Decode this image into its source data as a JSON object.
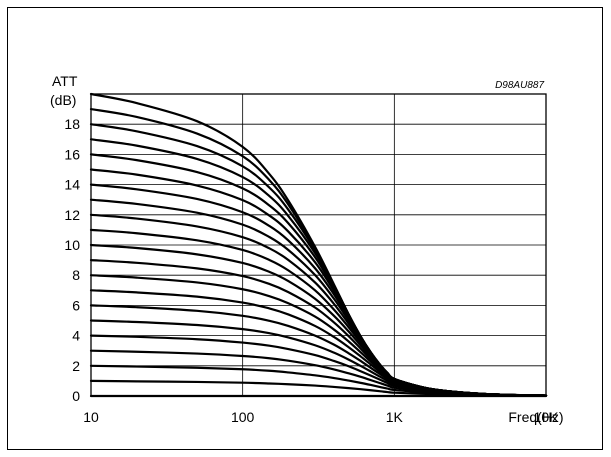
{
  "chart_data": {
    "type": "line",
    "code": "D98AU887",
    "ylabel_line1": "ATT",
    "ylabel_line2": "(dB)",
    "xlabel": "Freq(Hz)",
    "x_scale": "log",
    "xlim": [
      10,
      10000
    ],
    "ylim": [
      0,
      20
    ],
    "grid": true,
    "x_ticks": [
      {
        "value": 10,
        "label": "10"
      },
      {
        "value": 100,
        "label": "100"
      },
      {
        "value": 1000,
        "label": "1K"
      },
      {
        "value": 10000,
        "label": "10K"
      }
    ],
    "y_ticks": [
      {
        "value": 0,
        "label": "0"
      },
      {
        "value": 2,
        "label": "2"
      },
      {
        "value": 4,
        "label": "4"
      },
      {
        "value": 6,
        "label": "6"
      },
      {
        "value": 8,
        "label": "8"
      },
      {
        "value": 10,
        "label": "10"
      },
      {
        "value": 12,
        "label": "12"
      },
      {
        "value": 14,
        "label": "14"
      },
      {
        "value": 16,
        "label": "16"
      },
      {
        "value": 18,
        "label": "18"
      }
    ],
    "line_color": "#000000",
    "x": [
      10,
      20,
      50,
      100,
      150,
      200,
      300,
      400,
      500,
      600,
      700,
      800,
      900,
      1000,
      1500,
      2000,
      3000,
      5000,
      10000
    ],
    "series": [
      {
        "values": [
          0,
          0,
          0,
          0,
          0,
          0,
          0,
          0,
          0,
          0,
          0,
          0,
          0,
          0,
          0,
          0,
          0,
          0,
          0
        ]
      },
      {
        "values": [
          1.0,
          0.97,
          0.93,
          0.88,
          0.83,
          0.78,
          0.69,
          0.6,
          0.52,
          0.45,
          0.38,
          0.32,
          0.26,
          0.22,
          0.15,
          0.11,
          0.07,
          0.04,
          0.02
        ]
      },
      {
        "values": [
          2.0,
          1.95,
          1.87,
          1.77,
          1.67,
          1.56,
          1.37,
          1.19,
          1.02,
          0.87,
          0.73,
          0.6,
          0.49,
          0.4,
          0.25,
          0.18,
          0.11,
          0.06,
          0.03
        ]
      },
      {
        "values": [
          3.0,
          2.93,
          2.81,
          2.65,
          2.5,
          2.34,
          2.04,
          1.76,
          1.5,
          1.27,
          1.05,
          0.86,
          0.69,
          0.55,
          0.33,
          0.23,
          0.14,
          0.07,
          0.03
        ]
      },
      {
        "values": [
          4.0,
          3.92,
          3.76,
          3.54,
          3.33,
          3.11,
          2.71,
          2.32,
          1.97,
          1.64,
          1.35,
          1.09,
          0.86,
          0.68,
          0.4,
          0.27,
          0.16,
          0.08,
          0.03
        ]
      },
      {
        "values": [
          5.0,
          4.9,
          4.7,
          4.43,
          4.16,
          3.88,
          3.36,
          2.87,
          2.41,
          1.99,
          1.62,
          1.29,
          1.01,
          0.79,
          0.45,
          0.3,
          0.17,
          0.08,
          0.03
        ]
      },
      {
        "values": [
          6.0,
          5.88,
          5.64,
          5.31,
          4.98,
          4.64,
          4.0,
          3.4,
          2.83,
          2.32,
          1.86,
          1.47,
          1.14,
          0.88,
          0.49,
          0.32,
          0.18,
          0.09,
          0.03
        ]
      },
      {
        "values": [
          7.0,
          6.86,
          6.58,
          6.19,
          5.8,
          5.4,
          4.64,
          3.91,
          3.23,
          2.62,
          2.08,
          1.62,
          1.24,
          0.95,
          0.52,
          0.34,
          0.19,
          0.09,
          0.03
        ]
      },
      {
        "values": [
          8.0,
          7.84,
          7.52,
          7.07,
          6.61,
          6.14,
          5.26,
          4.4,
          3.61,
          2.89,
          2.27,
          1.75,
          1.33,
          1.01,
          0.55,
          0.35,
          0.2,
          0.09,
          0.03
        ]
      },
      {
        "values": [
          9.0,
          8.82,
          8.45,
          7.94,
          7.42,
          6.88,
          5.86,
          4.87,
          3.96,
          3.14,
          2.43,
          1.85,
          1.39,
          1.05,
          0.57,
          0.36,
          0.2,
          0.09,
          0.03
        ]
      },
      {
        "values": [
          10.0,
          9.8,
          9.38,
          8.81,
          8.22,
          7.61,
          6.44,
          5.31,
          4.27,
          3.35,
          2.57,
          1.94,
          1.45,
          1.08,
          0.58,
          0.37,
          0.2,
          0.09,
          0.03
        ]
      },
      {
        "values": [
          11.0,
          10.78,
          10.31,
          9.67,
          9.01,
          8.32,
          7.0,
          5.72,
          4.55,
          3.53,
          2.68,
          2.0,
          1.48,
          1.1,
          0.59,
          0.37,
          0.21,
          0.09,
          0.03
        ]
      },
      {
        "values": [
          12.0,
          11.75,
          11.23,
          10.52,
          9.78,
          9.01,
          7.52,
          6.1,
          4.79,
          3.67,
          2.76,
          2.04,
          1.5,
          1.11,
          0.59,
          0.37,
          0.21,
          0.09,
          0.03
        ]
      },
      {
        "values": [
          13.0,
          12.72,
          12.14,
          11.35,
          10.53,
          9.67,
          8.01,
          6.44,
          4.99,
          3.78,
          2.81,
          2.07,
          1.52,
          1.12,
          0.6,
          0.38,
          0.21,
          0.09,
          0.03
        ]
      },
      {
        "values": [
          14.0,
          13.69,
          13.05,
          12.17,
          11.26,
          10.3,
          8.46,
          6.73,
          5.15,
          3.85,
          2.84,
          2.08,
          1.52,
          1.12,
          0.6,
          0.38,
          0.21,
          0.09,
          0.03
        ]
      },
      {
        "values": [
          15.0,
          14.66,
          13.94,
          12.97,
          11.95,
          10.89,
          8.86,
          6.96,
          5.26,
          3.89,
          2.86,
          2.09,
          1.53,
          1.13,
          0.6,
          0.38,
          0.21,
          0.09,
          0.03
        ]
      },
      {
        "values": [
          16.0,
          15.62,
          14.83,
          13.75,
          12.62,
          11.44,
          9.2,
          7.13,
          5.33,
          3.92,
          2.87,
          2.1,
          1.53,
          1.13,
          0.6,
          0.38,
          0.21,
          0.09,
          0.03
        ]
      },
      {
        "values": [
          17.0,
          16.58,
          15.7,
          14.5,
          13.24,
          11.92,
          9.47,
          7.25,
          5.37,
          3.93,
          2.87,
          2.1,
          1.53,
          1.13,
          0.6,
          0.38,
          0.21,
          0.09,
          0.03
        ]
      },
      {
        "values": [
          18.0,
          17.53,
          16.55,
          15.21,
          13.8,
          12.34,
          9.67,
          7.32,
          5.39,
          3.94,
          2.88,
          2.1,
          1.53,
          1.13,
          0.6,
          0.38,
          0.21,
          0.09,
          0.03
        ]
      },
      {
        "values": [
          19.0,
          18.48,
          17.38,
          15.88,
          14.3,
          12.68,
          9.8,
          7.36,
          5.4,
          3.94,
          2.88,
          2.1,
          1.53,
          1.13,
          0.6,
          0.38,
          0.21,
          0.09,
          0.03
        ]
      },
      {
        "values": [
          20.0,
          19.4,
          18.2,
          16.5,
          14.7,
          12.94,
          9.88,
          7.38,
          5.4,
          3.94,
          2.88,
          2.1,
          1.53,
          1.13,
          0.6,
          0.38,
          0.21,
          0.09,
          0.03
        ]
      }
    ]
  }
}
